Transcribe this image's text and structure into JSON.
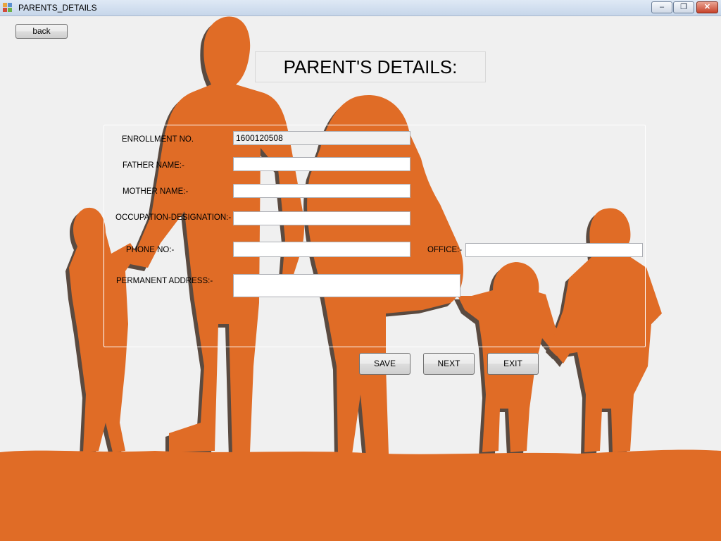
{
  "window": {
    "title": "PARENTS_DETAILS"
  },
  "title_controls": {
    "minimize": "–",
    "maximize": "❐",
    "close": "✕"
  },
  "back_label": "back",
  "heading": "PARENT'S DETAILS:",
  "form": {
    "enrollment_label": "ENROLLMENT NO.",
    "enrollment_value": "1600120508",
    "father_label": "FATHER NAME:-",
    "father_value": "",
    "mother_label": "MOTHER NAME:-",
    "mother_value": "",
    "occupation_label": "OCCUPATION-DESIGNATION:-",
    "occupation_value": "",
    "phone_label": "PHONE NO:-",
    "phone_value": "",
    "office_label": "OFFICE:-",
    "office_value": "",
    "address_label": "PERMANENT ADDRESS:-",
    "address_value": ""
  },
  "buttons": {
    "save": "SAVE",
    "next": "NEXT",
    "exit": "EXIT"
  },
  "colors": {
    "silhouette": "#e06c26",
    "shadow": "#5a4a40",
    "background": "#f0f0f0"
  }
}
